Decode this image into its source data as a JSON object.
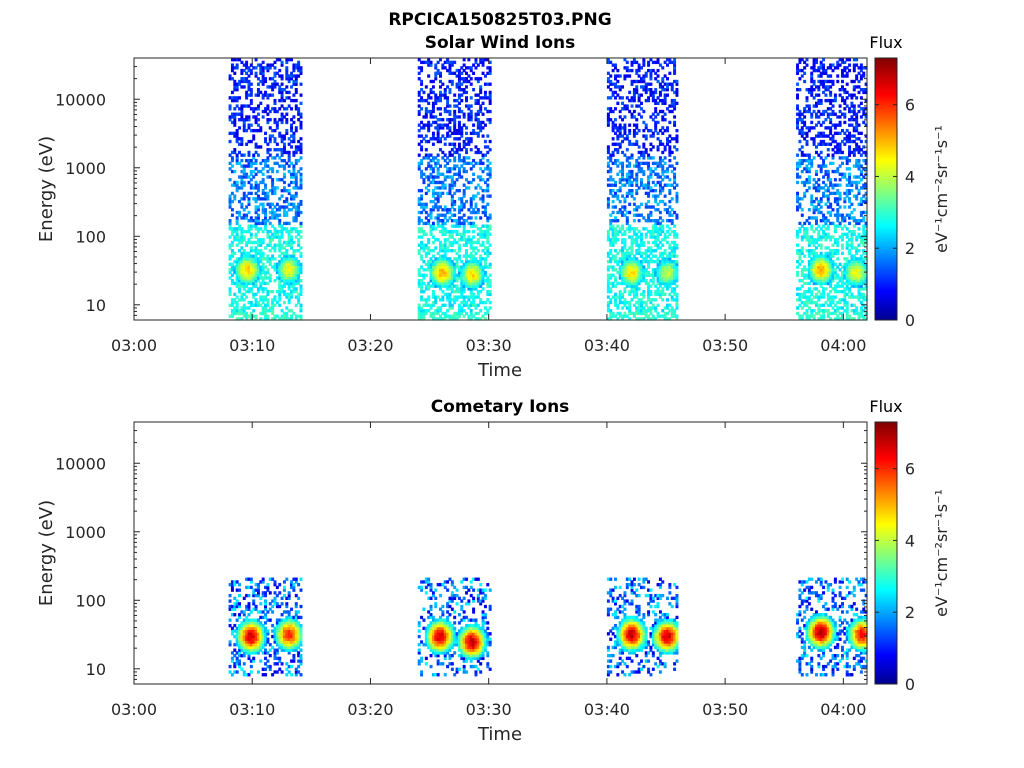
{
  "figure": {
    "title": "RPCICA150825T03.PNG"
  },
  "colorbar": {
    "title": "Flux",
    "unit_label": "eV⁻¹cm⁻²sr⁻¹s⁻¹",
    "ticks": [
      0,
      2,
      4,
      6
    ],
    "range": [
      0,
      7.3
    ],
    "colormap": "jet"
  },
  "chart_data": [
    {
      "type": "heatmap",
      "title": "Solar Wind Ions",
      "xlabel": "Time",
      "ylabel": "Energy (eV)",
      "x_ticks": [
        "03:00",
        "03:10",
        "03:20",
        "03:30",
        "03:40",
        "03:50",
        "04:00"
      ],
      "xlim": [
        "03:00",
        "04:02"
      ],
      "y_scale": "log",
      "y_ticks": [
        10,
        100,
        1000,
        10000
      ],
      "ylim": [
        6,
        40000
      ],
      "z_range": [
        0,
        7.3
      ],
      "observation_intervals": [
        [
          "03:08",
          "03:14"
        ],
        [
          "03:24",
          "03:30"
        ],
        [
          "03:40",
          "03:46"
        ],
        [
          "03:56",
          "04:02"
        ]
      ],
      "features": [
        {
          "time": "03:09.5",
          "energy": 33,
          "flux": 5.0
        },
        {
          "time": "03:13.0",
          "energy": 33,
          "flux": 4.5
        },
        {
          "time": "03:26.0",
          "energy": 30,
          "flux": 5.2
        },
        {
          "time": "03:28.5",
          "energy": 28,
          "flux": 4.8
        },
        {
          "time": "03:42.0",
          "energy": 30,
          "flux": 4.8
        },
        {
          "time": "03:45.0",
          "energy": 30,
          "flux": 4.2
        },
        {
          "time": "03:58.0",
          "energy": 33,
          "flux": 5.2
        },
        {
          "time": "04:01.0",
          "energy": 30,
          "flux": 4.6
        }
      ],
      "background_flux": {
        "high_energy": 1.0,
        "mid_energy": 2.0,
        "low_energy": 3.0
      }
    },
    {
      "type": "heatmap",
      "title": "Cometary Ions",
      "xlabel": "Time",
      "ylabel": "Energy (eV)",
      "x_ticks": [
        "03:00",
        "03:10",
        "03:20",
        "03:30",
        "03:40",
        "03:50",
        "04:00"
      ],
      "xlim": [
        "03:00",
        "04:02"
      ],
      "y_scale": "log",
      "y_ticks": [
        10,
        100,
        1000,
        10000
      ],
      "ylim": [
        6,
        40000
      ],
      "z_range": [
        0,
        7.3
      ],
      "observation_intervals": [
        [
          "03:08",
          "03:14"
        ],
        [
          "03:24",
          "03:30"
        ],
        [
          "03:40",
          "03:46"
        ],
        [
          "03:56",
          "04:02"
        ]
      ],
      "features": [
        {
          "time": "03:09.8",
          "energy": 30,
          "flux": 6.8
        },
        {
          "time": "03:13.0",
          "energy": 32,
          "flux": 6.2
        },
        {
          "time": "03:25.8",
          "energy": 30,
          "flux": 6.8
        },
        {
          "time": "03:28.5",
          "energy": 25,
          "flux": 6.9
        },
        {
          "time": "03:42.0",
          "energy": 32,
          "flux": 6.9
        },
        {
          "time": "03:45.0",
          "energy": 30,
          "flux": 6.8
        },
        {
          "time": "03:58.0",
          "energy": 35,
          "flux": 7.0
        },
        {
          "time": "04:01.5",
          "energy": 32,
          "flux": 6.5
        }
      ],
      "upper_energy_limit": 220
    }
  ]
}
